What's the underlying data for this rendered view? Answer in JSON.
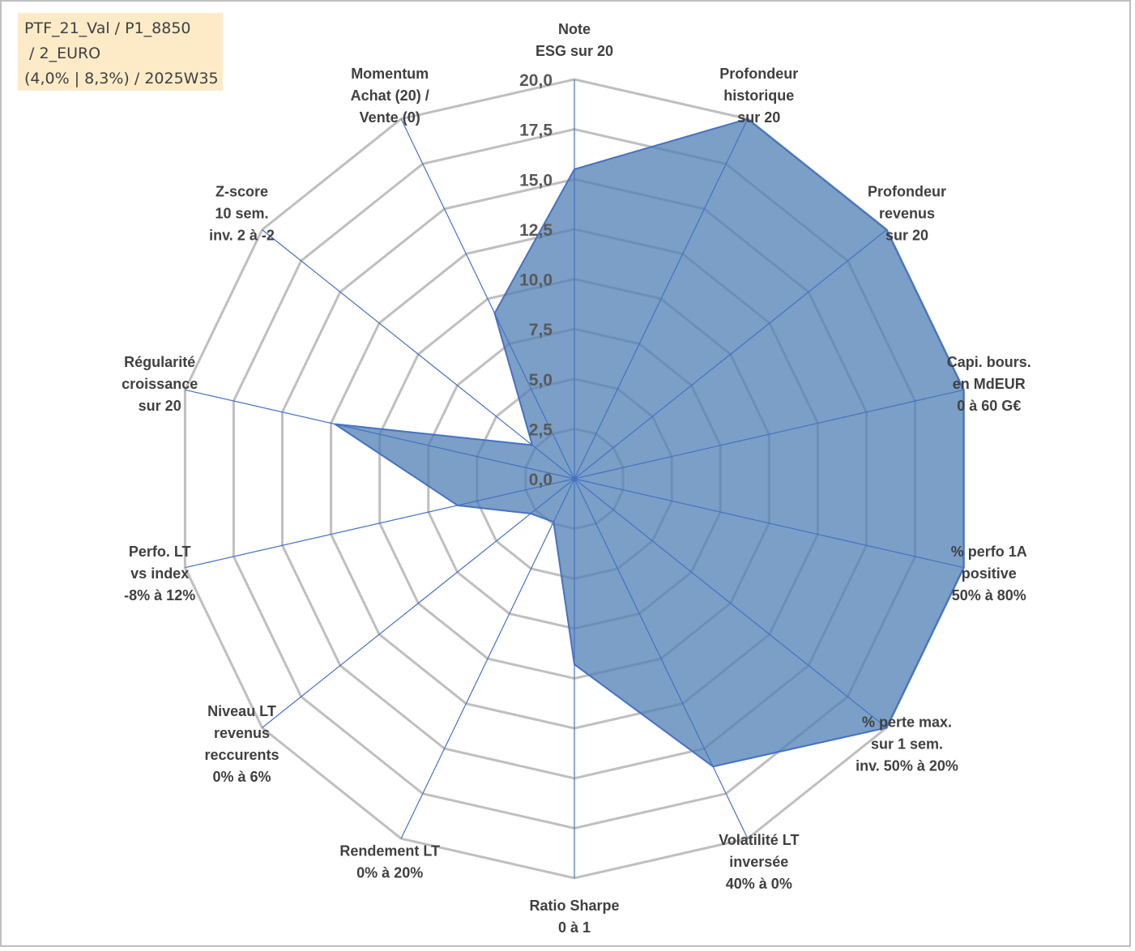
{
  "title_box": {
    "lines": [
      "PTF_21_Val / P1_8850",
      " / 2_EURO",
      "(4,0% | 8,3%) / 2025W35"
    ]
  },
  "colors": {
    "grid": "#bfbfbf",
    "spoke": "#4472c4",
    "fill": "#4f7fb3",
    "border": "#4472c4"
  },
  "chart_data": {
    "type": "radar",
    "rmin": 0,
    "rmax": 20,
    "ticks": [
      0,
      2.5,
      5,
      7.5,
      10,
      12.5,
      15,
      17.5,
      20
    ],
    "tick_labels": [
      "0,0",
      "2,5",
      "5,0",
      "7,5",
      "10,0",
      "12,5",
      "15,0",
      "17,5",
      "20,0"
    ],
    "axes": [
      {
        "label": [
          "Note",
          "ESG sur 20"
        ],
        "value": 15.5
      },
      {
        "label": [
          "Profondeur",
          "historique",
          "sur 20"
        ],
        "value": 20
      },
      {
        "label": [
          "Profondeur",
          "revenus",
          "sur 20"
        ],
        "value": 20
      },
      {
        "label": [
          "Capi. bours.",
          "en MdEUR",
          "0 à 60 G€"
        ],
        "value": 20
      },
      {
        "label": [
          "% perfo 1A",
          "positive",
          "50% à 80%"
        ],
        "value": 20
      },
      {
        "label": [
          "% perte max.",
          "sur 1 sem.",
          "inv. 50% à 20%"
        ],
        "value": 20
      },
      {
        "label": [
          "Volatilité LT",
          "inversée",
          "40% à 0%"
        ],
        "value": 16
      },
      {
        "label": [
          "Ratio Sharpe",
          "0 à 1"
        ],
        "value": 9.3
      },
      {
        "label": [
          "Rendement LT",
          "0% à 20%"
        ],
        "value": 2.4
      },
      {
        "label": [
          "Niveau LT",
          "revenus",
          "reccurents",
          "0% à 6%"
        ],
        "value": 2.8
      },
      {
        "label": [
          "Perfo. LT",
          "vs index",
          "-8% à 12%"
        ],
        "value": 6.0
      },
      {
        "label": [
          "Régularité",
          "croissance",
          "sur 20"
        ],
        "value": 12.3
      },
      {
        "label": [
          "Z-score",
          "10 sem.",
          "inv. 2 à -2"
        ],
        "value": 2.7
      },
      {
        "label": [
          "Momentum",
          "Achat (20) /",
          "Vente (0)"
        ],
        "value": 9.2
      }
    ]
  }
}
